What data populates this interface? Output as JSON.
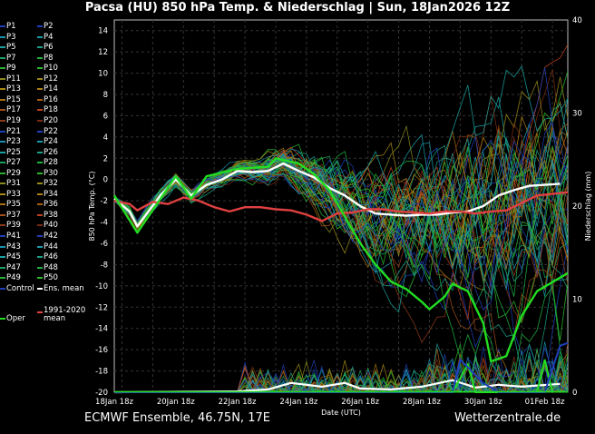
{
  "title": "Pacsa  (HU)  850 hPa Temp. & Niederschlag | Sun, 18Jan2026 12Z",
  "footer": {
    "left": "ECMWF Ensemble, 46.75N, 17E",
    "right": "Wetterzentrale.de"
  },
  "legend": {
    "members": [
      "P1",
      "P2",
      "P3",
      "P4",
      "P5",
      "P6",
      "P7",
      "P8",
      "P9",
      "P10",
      "P11",
      "P12",
      "P13",
      "P14",
      "P15",
      "P16",
      "P17",
      "P18",
      "P19",
      "P20",
      "P21",
      "P22",
      "P23",
      "P24",
      "P25",
      "P26",
      "P27",
      "P28",
      "P29",
      "P30",
      "P31",
      "P32",
      "P33",
      "P34",
      "P35",
      "P36",
      "P37",
      "P38",
      "P39",
      "P40",
      "P41",
      "P42",
      "P43",
      "P44",
      "P45",
      "P46",
      "P47",
      "P48",
      "P49",
      "P50"
    ],
    "member_colors": [
      "#1f3fb8",
      "#1f3fb8",
      "#1a8fb0",
      "#1a9aa8",
      "#19a0a0",
      "#19a085",
      "#18a060",
      "#1fb040",
      "#2ab030",
      "#28b828",
      "#8a8a20",
      "#9a8a18",
      "#a88a10",
      "#b08010",
      "#a87010",
      "#a86010",
      "#a05018",
      "#c04020",
      "#8c3a18",
      "#7a2a10"
    ],
    "control": "Control",
    "control_color": "#1f3fb8",
    "ens_mean": "Ens. mean",
    "ens_mean_color": "#ffffff",
    "climate": "1991-2020 mean",
    "climate_color": "#e04040",
    "oper": "Oper",
    "oper_color": "#22dd22"
  },
  "chart_data": {
    "type": "line",
    "title": "Pacsa  (HU)  850 hPa Temp. & Niederschlag | Sun, 18Jan2026 12Z",
    "xlabel": "Date (UTC)",
    "ylabel": "850 hPa Temp. (°C)",
    "y2label": "Niederschlag (mm)",
    "xlim": [
      "2026-01-18T18",
      "2026-02-02T12"
    ],
    "ylim": [
      -20,
      15
    ],
    "y2lim": [
      0,
      40
    ],
    "grid": true,
    "legend_placement": "left-outside",
    "x_ticks": [
      "18Jan 18z",
      "20Jan 18z",
      "22Jan 18z",
      "24Jan 18z",
      "26Jan 18z",
      "28Jan 18z",
      "30Jan 18z",
      "01Feb 18z"
    ],
    "x_tick_dates": [
      "2026-01-18T18",
      "2026-01-20T18",
      "2026-01-22T18",
      "2026-01-24T18",
      "2026-01-26T18",
      "2026-01-28T18",
      "2026-01-30T18",
      "2026-02-01T18"
    ],
    "y_ticks": [
      14,
      12,
      10,
      8,
      6,
      4,
      2,
      0,
      -2,
      -4,
      -6,
      -8,
      -10,
      -12,
      -14,
      -16,
      -18,
      -20
    ],
    "y2_ticks": [
      0,
      10,
      20,
      30,
      40
    ],
    "series": [
      {
        "name": "Ens. mean",
        "color": "#ffffff",
        "points": [
          [
            "2026-01-18T18",
            -1.8
          ],
          [
            "2026-01-19T06",
            -3.0
          ],
          [
            "2026-01-19T12",
            -4.4
          ],
          [
            "2026-01-20T06",
            -1.5
          ],
          [
            "2026-01-20T18",
            0.0
          ],
          [
            "2026-01-21T06",
            -1.5
          ],
          [
            "2026-01-21T18",
            -0.5
          ],
          [
            "2026-01-22T06",
            0.0
          ],
          [
            "2026-01-22T18",
            0.8
          ],
          [
            "2026-01-23T06",
            0.7
          ],
          [
            "2026-01-23T18",
            0.8
          ],
          [
            "2026-01-24T06",
            1.5
          ],
          [
            "2026-01-24T18",
            0.8
          ],
          [
            "2026-01-25T06",
            0.2
          ],
          [
            "2026-01-25T18",
            -0.8
          ],
          [
            "2026-01-26T06",
            -1.5
          ],
          [
            "2026-01-26T18",
            -2.5
          ],
          [
            "2026-01-27T06",
            -3.2
          ],
          [
            "2026-01-27T18",
            -3.3
          ],
          [
            "2026-01-28T06",
            -3.4
          ],
          [
            "2026-01-28T18",
            -3.3
          ],
          [
            "2026-01-29T06",
            -3.3
          ],
          [
            "2026-01-29T18",
            -3.1
          ],
          [
            "2026-01-30T06",
            -3.0
          ],
          [
            "2026-01-30T18",
            -2.5
          ],
          [
            "2026-01-31T06",
            -1.5
          ],
          [
            "2026-01-31T18",
            -1.0
          ],
          [
            "2026-02-01T06",
            -0.6
          ],
          [
            "2026-02-01T18",
            -0.5
          ],
          [
            "2026-02-02T06",
            -0.4
          ]
        ]
      },
      {
        "name": "1991-2020 mean",
        "color": "#e04040",
        "points": [
          [
            "2026-01-18T18",
            -2.0
          ],
          [
            "2026-01-19T06",
            -2.3
          ],
          [
            "2026-01-19T12",
            -2.9
          ],
          [
            "2026-01-20T00",
            -2.1
          ],
          [
            "2026-01-20T12",
            -2.3
          ],
          [
            "2026-01-21T00",
            -1.7
          ],
          [
            "2026-01-21T12",
            -2.0
          ],
          [
            "2026-01-22T00",
            -2.6
          ],
          [
            "2026-01-22T12",
            -3.0
          ],
          [
            "2026-01-23T00",
            -2.6
          ],
          [
            "2026-01-23T12",
            -2.6
          ],
          [
            "2026-01-24T00",
            -2.8
          ],
          [
            "2026-01-24T12",
            -2.9
          ],
          [
            "2026-01-25T00",
            -3.3
          ],
          [
            "2026-01-25T12",
            -3.9
          ],
          [
            "2026-01-26T00",
            -3.2
          ],
          [
            "2026-01-26T12",
            -3.1
          ],
          [
            "2026-01-27T00",
            -2.8
          ],
          [
            "2026-01-27T12",
            -2.8
          ],
          [
            "2026-01-28T00",
            -3.0
          ],
          [
            "2026-01-28T12",
            -3.1
          ],
          [
            "2026-01-29T00",
            -3.2
          ],
          [
            "2026-01-29T12",
            -3.0
          ],
          [
            "2026-01-30T00",
            -3.0
          ],
          [
            "2026-01-30T12",
            -3.2
          ],
          [
            "2026-01-31T00",
            -3.0
          ],
          [
            "2026-01-31T12",
            -2.9
          ],
          [
            "2026-02-01T00",
            -2.2
          ],
          [
            "2026-02-01T12",
            -1.5
          ],
          [
            "2026-02-02T12",
            -1.2
          ]
        ]
      },
      {
        "name": "Oper",
        "color": "#22dd22",
        "points": [
          [
            "2026-01-18T18",
            -1.5
          ],
          [
            "2026-01-19T12",
            -5.0
          ],
          [
            "2026-01-20T18",
            0.3
          ],
          [
            "2026-01-21T06",
            -1.8
          ],
          [
            "2026-01-21T18",
            0.3
          ],
          [
            "2026-01-22T18",
            1.0
          ],
          [
            "2026-01-23T18",
            1.2
          ],
          [
            "2026-01-24T00",
            2.0
          ],
          [
            "2026-01-24T18",
            1.5
          ],
          [
            "2026-01-25T06",
            0.5
          ],
          [
            "2026-01-25T18",
            -1.0
          ],
          [
            "2026-01-26T06",
            -3.5
          ],
          [
            "2026-01-26T18",
            -6.0
          ],
          [
            "2026-01-27T06",
            -8.0
          ],
          [
            "2026-01-27T18",
            -9.6
          ],
          [
            "2026-01-28T06",
            -10.3
          ],
          [
            "2026-01-28T18",
            -11.5
          ],
          [
            "2026-01-29T00",
            -12.2
          ],
          [
            "2026-01-29T12",
            -11.0
          ],
          [
            "2026-01-29T18",
            -9.8
          ],
          [
            "2026-01-30T06",
            -10.5
          ],
          [
            "2026-01-30T18",
            -13.5
          ],
          [
            "2026-01-31T00",
            -17.1
          ],
          [
            "2026-01-31T12",
            -16.6
          ],
          [
            "2026-02-01T00",
            -12.8
          ],
          [
            "2026-02-01T12",
            -10.5
          ],
          [
            "2026-02-02T12",
            -8.8
          ]
        ]
      }
    ],
    "precip_series": [
      {
        "name": "Ens. mean",
        "color": "#ffffff",
        "points": [
          [
            "2026-01-18T18",
            0
          ],
          [
            "2026-01-22T18",
            0.1
          ],
          [
            "2026-01-23T18",
            0.3
          ],
          [
            "2026-01-24T12",
            1.0
          ],
          [
            "2026-01-25T12",
            0.6
          ],
          [
            "2026-01-26T06",
            1.0
          ],
          [
            "2026-01-26T18",
            0.4
          ],
          [
            "2026-01-27T18",
            0.3
          ],
          [
            "2026-01-28T18",
            0.6
          ],
          [
            "2026-01-29T18",
            1.3
          ],
          [
            "2026-01-30T12",
            0.5
          ],
          [
            "2026-01-31T06",
            0.8
          ],
          [
            "2026-02-01T00",
            0.6
          ],
          [
            "2026-02-02T06",
            0.9
          ]
        ]
      },
      {
        "name": "Oper",
        "color": "#22dd22",
        "points": [
          [
            "2026-01-18T18",
            0
          ],
          [
            "2026-01-29T18",
            0
          ],
          [
            "2026-01-30T06",
            3.0
          ],
          [
            "2026-01-30T12",
            0
          ],
          [
            "2026-01-31T18",
            0
          ],
          [
            "2026-02-01T12",
            0
          ],
          [
            "2026-02-01T18",
            3.5
          ],
          [
            "2026-02-02T00",
            0
          ]
        ]
      },
      {
        "name": "Control",
        "color": "#1f3fb8",
        "points": [
          [
            "2026-01-18T18",
            0
          ],
          [
            "2026-01-29T18",
            0
          ],
          [
            "2026-01-30T00",
            3.5
          ],
          [
            "2026-01-30T18",
            1.0
          ],
          [
            "2026-01-31T06",
            0
          ],
          [
            "2026-02-01T18",
            0
          ],
          [
            "2026-02-02T06",
            5.0
          ],
          [
            "2026-02-02T12",
            5.3
          ]
        ]
      }
    ]
  }
}
